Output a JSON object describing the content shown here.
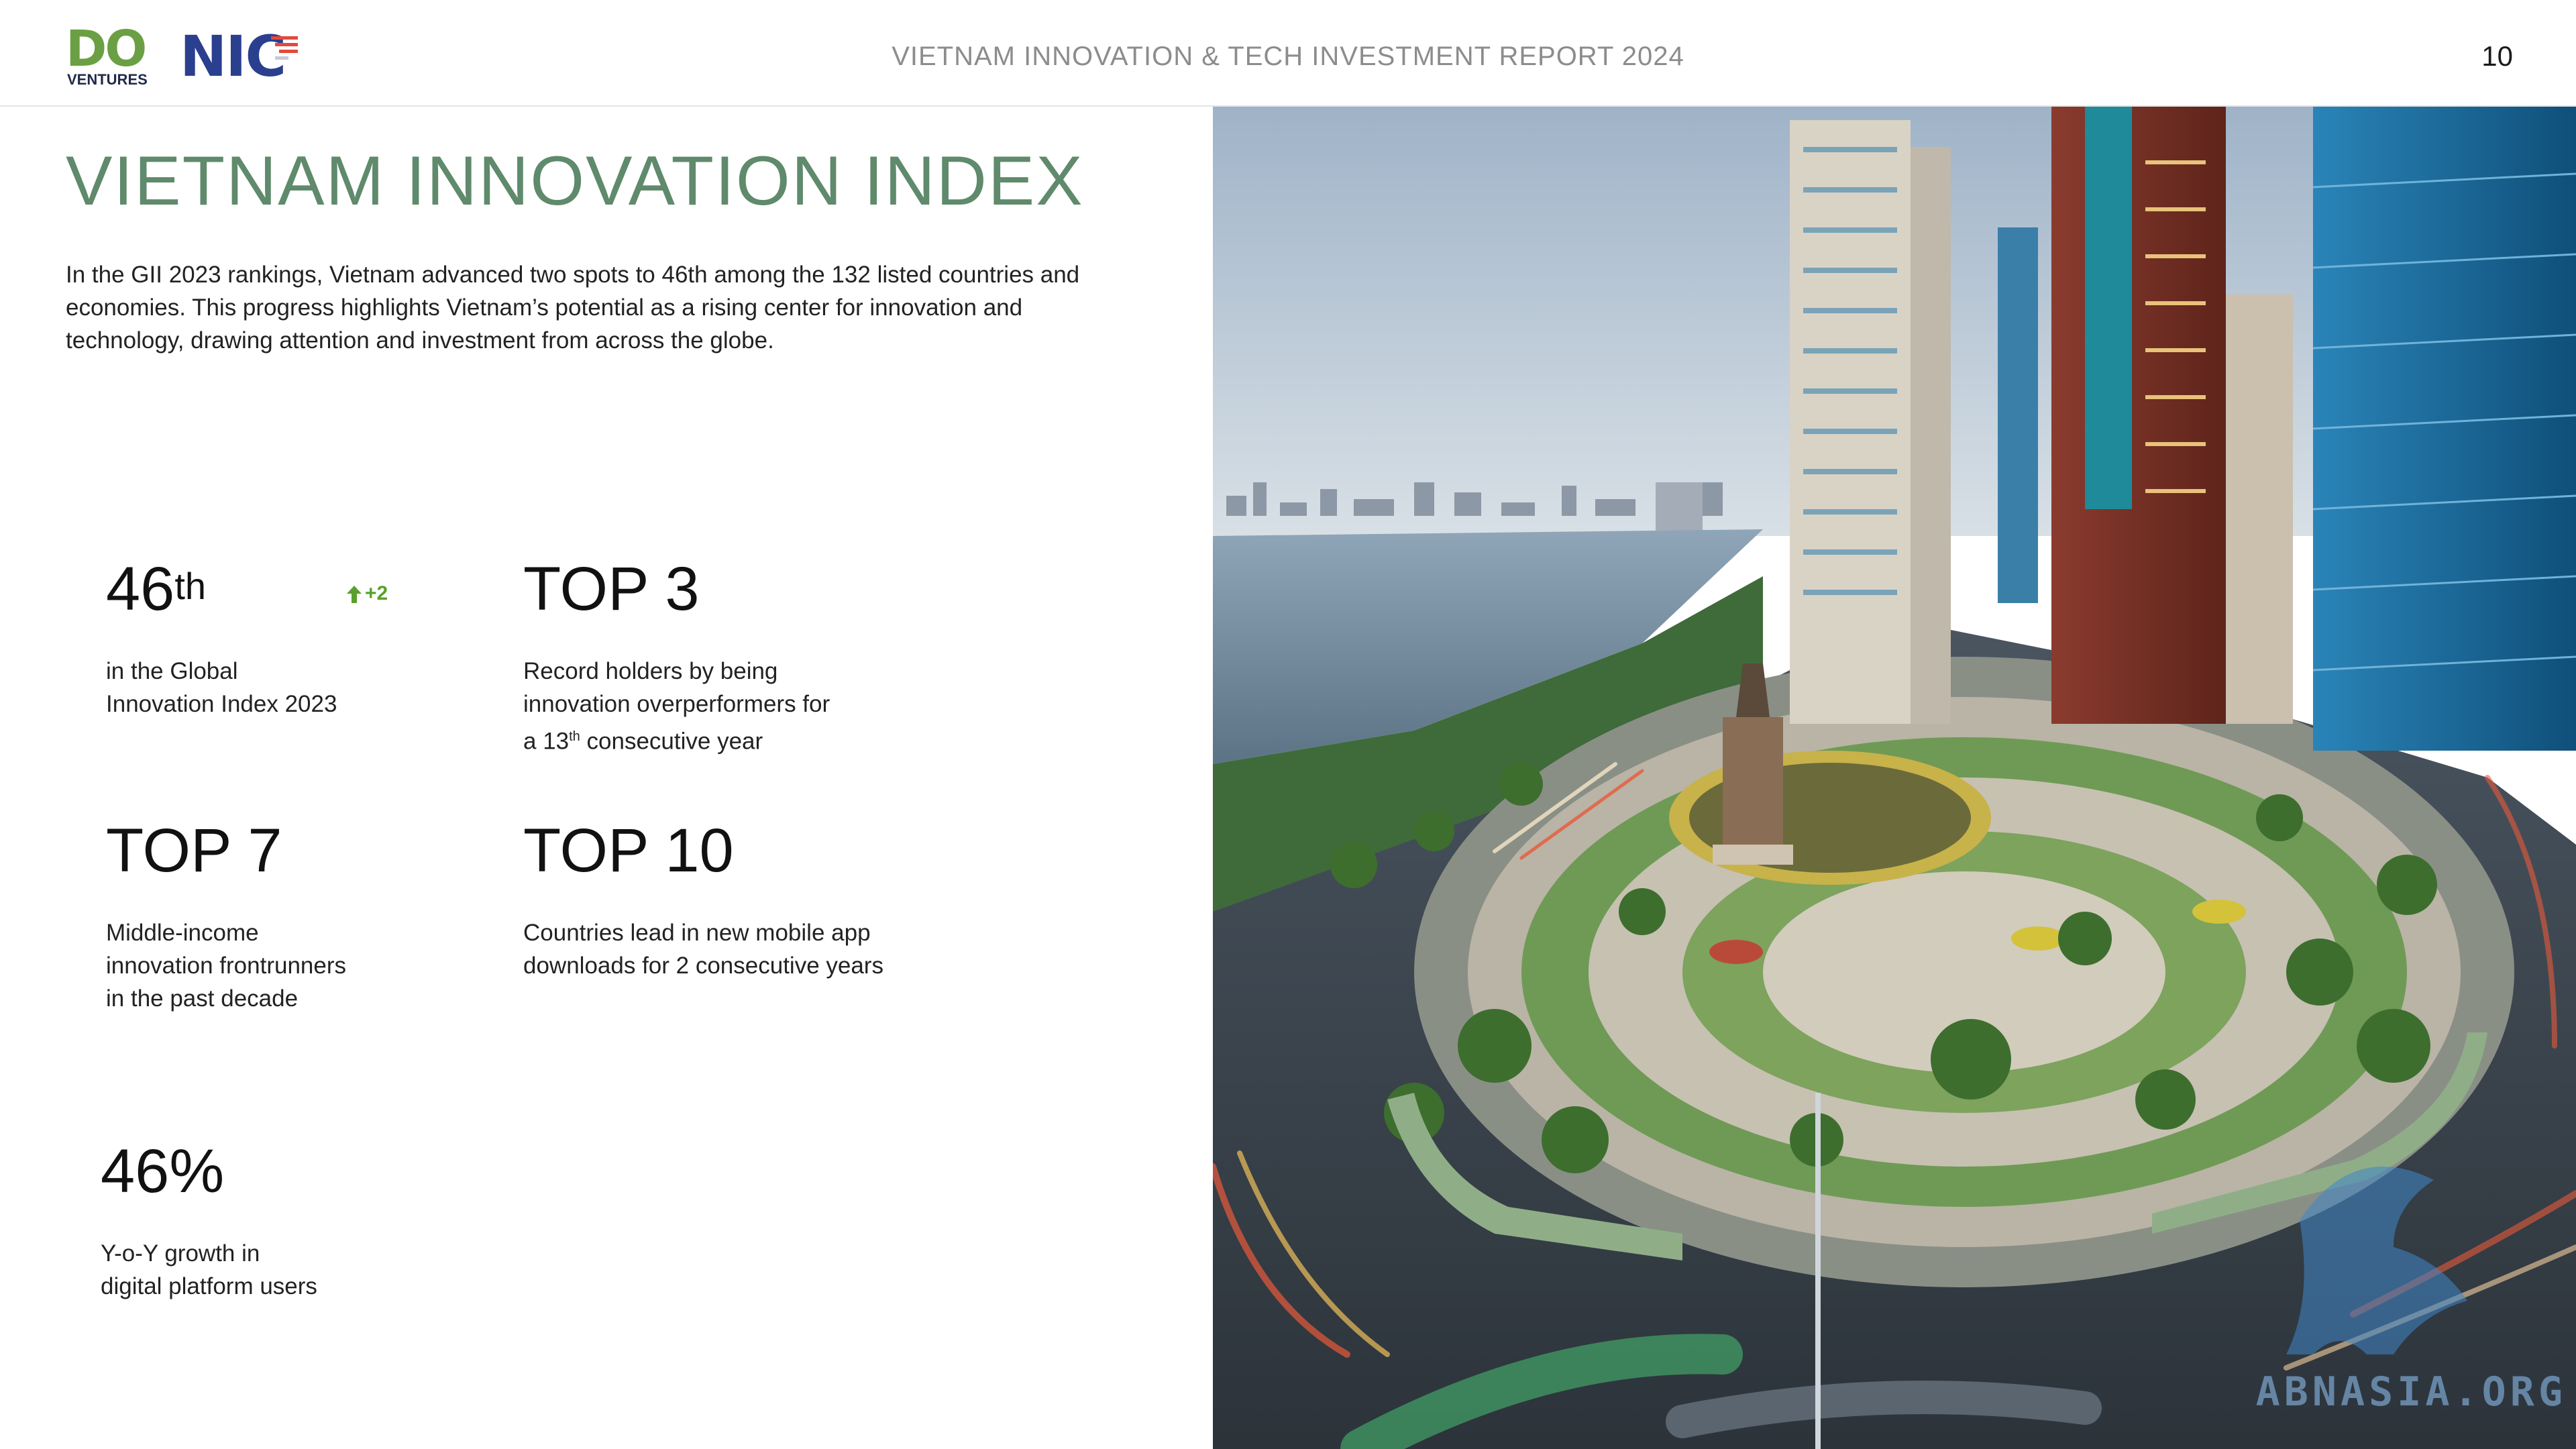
{
  "header": {
    "logo_do": {
      "main": "DO",
      "sub": "VENTURES"
    },
    "logo_nic": {
      "main": "NIC"
    },
    "title": "VIETNAM INNOVATION & TECH INVESTMENT REPORT 2024",
    "page_number": "10"
  },
  "main": {
    "title": "VIETNAM INNOVATION INDEX",
    "intro": "In the GII 2023 rankings, Vietnam advanced two spots to 46th among the 132 listed countries and economies. This progress highlights Vietnam’s potential as a rising center for innovation and technology, drawing attention and investment from across the globe."
  },
  "stats": {
    "rank": {
      "value": "46",
      "suffix": "th",
      "change": "+2",
      "desc": "in the Global\nInnovation Index 2023"
    },
    "top3": {
      "value": "TOP 3",
      "desc_line1": "Record holders by being",
      "desc_line2": "innovation overperformers for",
      "desc_line3_pre": "a 13",
      "desc_line3_sup": "th",
      "desc_line3_post": " consecutive year"
    },
    "top7": {
      "value": "TOP 7",
      "desc": "Middle-income\ninnovation frontrunners\nin the past decade"
    },
    "top10": {
      "value": "TOP 10",
      "desc": "Countries lead in new mobile app\ndownloads for 2 consecutive years"
    },
    "growth": {
      "value": "46%",
      "desc": "Y-o-Y growth in\ndigital platform users"
    }
  },
  "photo": {
    "subject": "aerial roundabout park with monument, river and high-rise buildings",
    "watermark": "ABNASIA.ORG"
  },
  "colors": {
    "title_green": "#5f8a6c",
    "logo_green": "#6aa043",
    "logo_blue": "#2b3f8f",
    "up_green": "#5aa02c"
  }
}
